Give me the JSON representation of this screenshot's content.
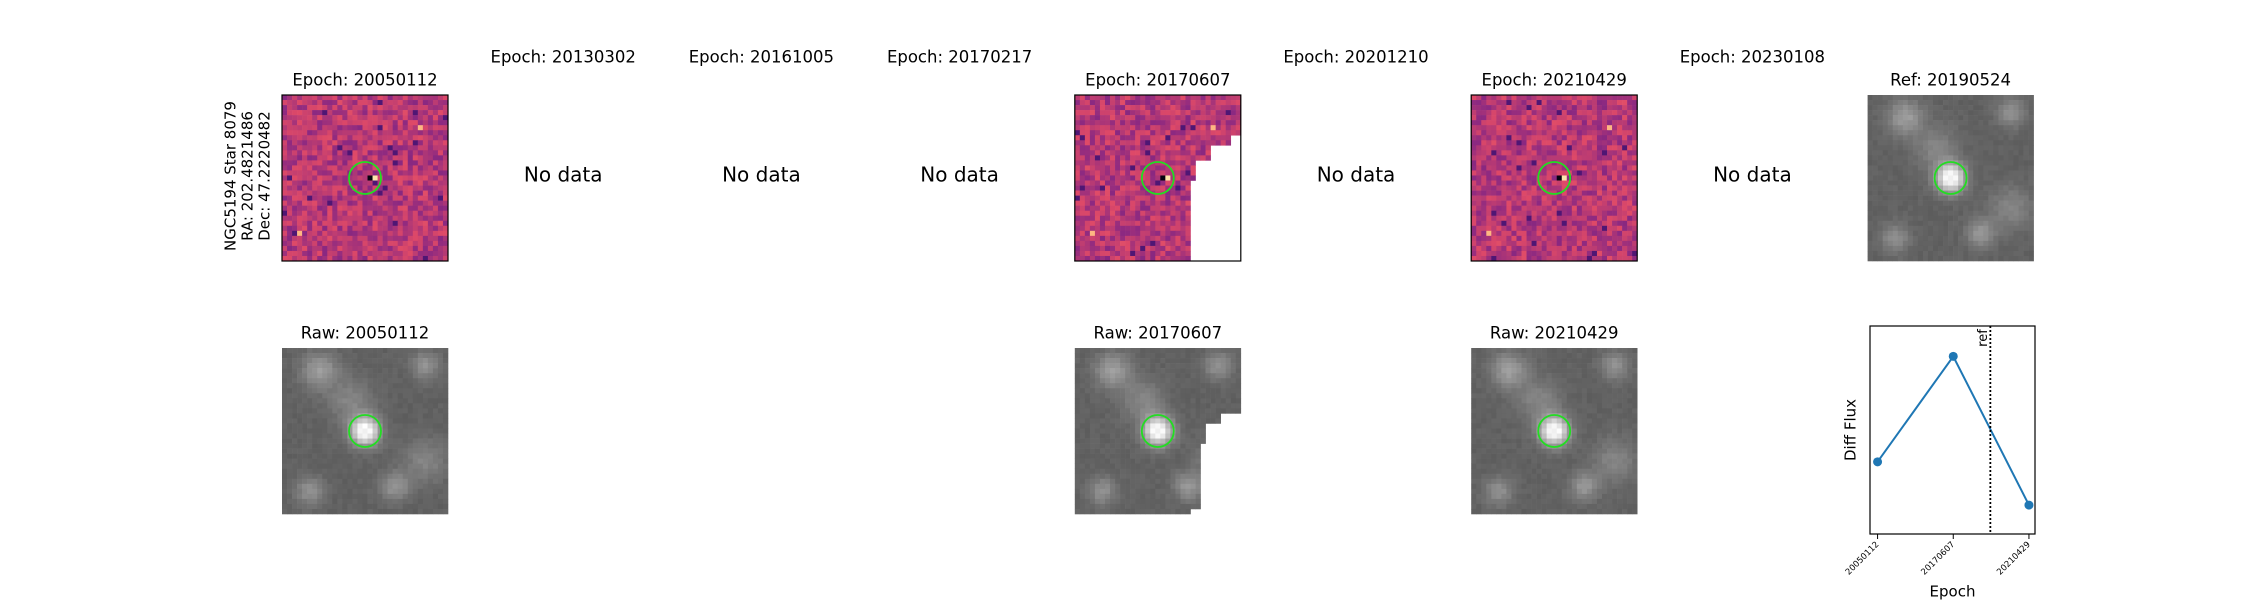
{
  "row_label": [
    "NGC5194 Star 8079",
    "RA: 202.4821486",
    "Dec: 47.2220482"
  ],
  "top_titles": [
    "Epoch: 20050112",
    "Epoch: 20130302",
    "Epoch: 20161005",
    "Epoch: 20170217",
    "Epoch: 20170607",
    "Epoch: 20201210",
    "Epoch: 20210429",
    "Epoch: 20230108",
    "Ref: 20190524"
  ],
  "top_messages": [
    null,
    "No data",
    "No data",
    "No data",
    null,
    "No data",
    null,
    "No data",
    null
  ],
  "bottom_titles": [
    "Raw: 20050112",
    null,
    null,
    null,
    "Raw: 20170607",
    null,
    "Raw: 20210429",
    null
  ],
  "chart_data": {
    "type": "line",
    "xlabel": "Epoch",
    "ylabel": "Diff Flux",
    "categories": [
      "20050112",
      "20170607",
      "20210429"
    ],
    "values": [
      34.7,
      85.4,
      13.9
    ],
    "color": "#1f77b4",
    "xlim": [
      -0.1,
      2.08
    ],
    "ylim": [
      0,
      100
    ],
    "vline": {
      "x": 1.49,
      "label": "ref"
    }
  }
}
